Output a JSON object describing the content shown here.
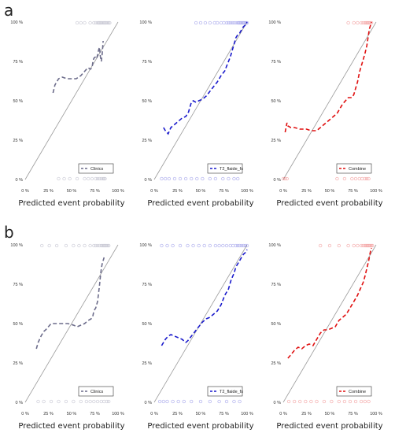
{
  "panel_labels": [
    "a",
    "b"
  ],
  "chart_data": [
    {
      "type": "line",
      "panel": "a",
      "color": "#6b6b8a",
      "legend": "Clinics",
      "xlabel": "Predicted event probability",
      "ylabel": "",
      "xlim": [
        0,
        100
      ],
      "ylim": [
        0,
        100
      ],
      "xticks": [
        "0 %",
        "25 %",
        "50 %",
        "75 %",
        "100 %"
      ],
      "yticks": [
        "0 %",
        "25 %",
        "50 %",
        "75 %",
        "100 %"
      ],
      "diagonal": true,
      "legend_position": "bottom-right",
      "x": [
        30,
        32,
        34,
        36,
        40,
        45,
        50,
        55,
        60,
        63,
        66,
        68,
        70,
        72,
        73,
        74,
        76,
        77,
        78,
        79,
        80,
        81,
        82,
        83,
        84
      ],
      "y": [
        55,
        60,
        62,
        64,
        65,
        64,
        64,
        64,
        66,
        68,
        70,
        71,
        70,
        71,
        75,
        77,
        78,
        77,
        79,
        82,
        84,
        78,
        75,
        80,
        88
      ],
      "rug_top": [
        56,
        60,
        64,
        70,
        74,
        76,
        78,
        79,
        80,
        81,
        82,
        83,
        84,
        85,
        86,
        87,
        88,
        89,
        90,
        91
      ],
      "rug_bottom": [
        36,
        42,
        48,
        56,
        64,
        68,
        72,
        76,
        78,
        80,
        82,
        84,
        85,
        86
      ]
    },
    {
      "type": "line",
      "panel": "a",
      "color": "#1a1acc",
      "legend": "T2_flaide_fs",
      "xlabel": "Predicted event probability",
      "ylabel": "",
      "xlim": [
        0,
        100
      ],
      "ylim": [
        0,
        100
      ],
      "xticks": [
        "0 %",
        "25 %",
        "50 %",
        "75 %",
        "100 %"
      ],
      "yticks": [
        "0 %",
        "25 %",
        "50 %",
        "75 %",
        "100 %"
      ],
      "diagonal": true,
      "legend_position": "bottom-right",
      "x": [
        10,
        12,
        15,
        18,
        22,
        26,
        30,
        34,
        37,
        38,
        40,
        42,
        45,
        48,
        52,
        56,
        60,
        64,
        68,
        72,
        76,
        78,
        82,
        84,
        86,
        88,
        90,
        92,
        94,
        96,
        98,
        100
      ],
      "y": [
        33,
        31,
        29,
        33,
        35,
        37,
        39,
        40,
        43,
        45,
        49,
        50,
        49,
        50,
        51,
        53,
        56,
        59,
        62,
        66,
        69,
        72,
        78,
        82,
        86,
        90,
        92,
        93,
        95,
        97,
        98,
        100
      ],
      "rug_top": [
        45,
        50,
        55,
        60,
        65,
        68,
        72,
        75,
        78,
        80,
        82,
        84,
        86,
        88,
        90,
        91,
        92,
        93,
        94,
        95,
        96,
        97,
        98,
        99,
        100
      ],
      "rug_bottom": [
        8,
        12,
        16,
        22,
        28,
        34,
        40,
        46,
        52,
        60,
        66,
        74,
        80,
        86,
        90
      ]
    },
    {
      "type": "line",
      "panel": "a",
      "color": "#e01010",
      "legend": "Combine",
      "xlabel": "Predicted event probability",
      "ylabel": "",
      "xlim": [
        0,
        100
      ],
      "ylim": [
        0,
        100
      ],
      "xticks": [
        "0 %",
        "25 %",
        "50 %",
        "75 %",
        "100 %"
      ],
      "yticks": [
        "0 %",
        "25 %",
        "50 %",
        "75 %",
        "100 %"
      ],
      "diagonal": true,
      "legend_position": "bottom-right",
      "x": [
        2,
        3,
        4,
        5,
        8,
        12,
        18,
        25,
        30,
        36,
        40,
        46,
        52,
        58,
        64,
        70,
        74,
        76,
        78,
        80,
        82,
        84,
        86,
        88,
        90,
        91,
        92,
        93,
        94,
        95
      ],
      "y": [
        30,
        33,
        36,
        34,
        33,
        33,
        32,
        32,
        31,
        31,
        33,
        36,
        39,
        42,
        48,
        52,
        52,
        54,
        58,
        62,
        68,
        72,
        76,
        80,
        85,
        89,
        93,
        96,
        98,
        100
      ],
      "rug_top": [
        70,
        76,
        80,
        84,
        86,
        88,
        89,
        90,
        91,
        92,
        93,
        94,
        95
      ],
      "rug_bottom": [
        0,
        2,
        4,
        58,
        66,
        74,
        78,
        82,
        85,
        88,
        90,
        92
      ]
    },
    {
      "type": "line",
      "panel": "b",
      "color": "#6b6b8a",
      "legend": "Clinics",
      "xlabel": "Predicted event probability",
      "ylabel": "",
      "xlim": [
        0,
        100
      ],
      "ylim": [
        0,
        100
      ],
      "xticks": [
        "0 %",
        "25 %",
        "50 %",
        "75 %",
        "100 %"
      ],
      "yticks": [
        "0 %",
        "25 %",
        "50 %",
        "75 %",
        "100 %"
      ],
      "diagonal": true,
      "legend_position": "bottom-right",
      "x": [
        12,
        14,
        17,
        20,
        22,
        25,
        28,
        32,
        36,
        40,
        46,
        52,
        56,
        60,
        64,
        68,
        71,
        73,
        74,
        76,
        78,
        79,
        80,
        81,
        82,
        83,
        84,
        85
      ],
      "y": [
        34,
        38,
        42,
        45,
        46,
        48,
        50,
        50,
        50,
        50,
        50,
        49,
        48,
        49,
        50,
        52,
        53,
        55,
        58,
        60,
        64,
        69,
        74,
        80,
        85,
        88,
        90,
        92
      ],
      "rug_top": [
        18,
        26,
        34,
        44,
        52,
        58,
        64,
        70,
        74,
        76,
        78,
        80,
        82,
        83,
        84,
        85,
        86,
        87,
        88,
        89,
        90
      ],
      "rug_bottom": [
        14,
        20,
        28,
        36,
        44,
        52,
        60,
        66,
        70,
        74,
        78,
        82,
        85,
        88,
        90
      ]
    },
    {
      "type": "line",
      "panel": "b",
      "color": "#1a1acc",
      "legend": "T2_flaide_fs",
      "xlabel": "Predicted event probability",
      "ylabel": "",
      "xlim": [
        0,
        100
      ],
      "ylim": [
        0,
        100
      ],
      "xticks": [
        "0 %",
        "25 %",
        "50 %",
        "75 %",
        "100 %"
      ],
      "yticks": [
        "0 %",
        "25 %",
        "50 %",
        "75 %",
        "100 %"
      ],
      "diagonal": true,
      "legend_position": "bottom-right",
      "x": [
        8,
        10,
        12,
        15,
        18,
        22,
        26,
        30,
        34,
        36,
        40,
        44,
        48,
        52,
        56,
        60,
        64,
        68,
        72,
        76,
        80,
        83,
        86,
        88,
        90,
        92,
        94,
        96,
        98,
        100
      ],
      "y": [
        36,
        38,
        40,
        42,
        43,
        42,
        41,
        40,
        38,
        39,
        42,
        45,
        48,
        51,
        53,
        54,
        56,
        58,
        62,
        68,
        72,
        78,
        82,
        86,
        88,
        90,
        92,
        94,
        95,
        97
      ],
      "rug_top": [
        8,
        14,
        20,
        28,
        36,
        42,
        48,
        54,
        60,
        66,
        70,
        74,
        78,
        82,
        85,
        88,
        90,
        92,
        94,
        96,
        98,
        100
      ],
      "rug_bottom": [
        6,
        10,
        14,
        20,
        26,
        32,
        40,
        50,
        60,
        70,
        78,
        86,
        92
      ]
    },
    {
      "type": "line",
      "panel": "b",
      "color": "#e01010",
      "legend": "Combine",
      "xlabel": "Predicted event probability",
      "ylabel": "",
      "xlim": [
        0,
        100
      ],
      "ylim": [
        0,
        100
      ],
      "xticks": [
        "0 %",
        "25 %",
        "50 %",
        "75 %",
        "100 %"
      ],
      "yticks": [
        "0 %",
        "25 %",
        "50 %",
        "75 %",
        "100 %"
      ],
      "diagonal": true,
      "legend_position": "bottom-right",
      "x": [
        5,
        8,
        12,
        16,
        20,
        24,
        28,
        32,
        36,
        40,
        44,
        48,
        52,
        56,
        60,
        64,
        68,
        72,
        76,
        80,
        83,
        86,
        88,
        90,
        92,
        93,
        94,
        95
      ],
      "y": [
        28,
        30,
        33,
        35,
        34,
        36,
        37,
        36,
        40,
        44,
        46,
        46,
        47,
        48,
        52,
        54,
        56,
        60,
        64,
        68,
        72,
        76,
        80,
        85,
        90,
        93,
        96,
        98
      ],
      "rug_top": [
        40,
        50,
        60,
        70,
        76,
        80,
        84,
        86,
        88,
        89,
        90,
        91,
        92,
        93,
        94,
        95,
        96
      ],
      "rug_bottom": [
        6,
        12,
        18,
        24,
        30,
        36,
        44,
        52,
        60,
        66,
        72,
        78,
        84,
        88,
        92
      ]
    }
  ]
}
